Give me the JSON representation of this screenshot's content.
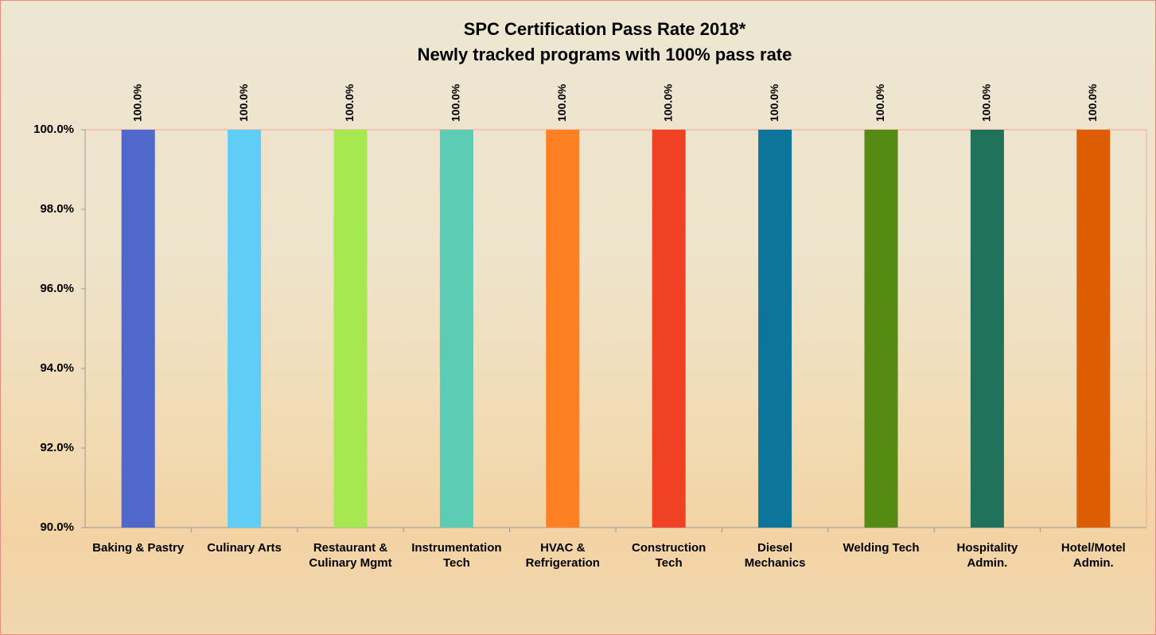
{
  "chart_data": {
    "type": "bar",
    "title": "SPC Certification Pass Rate 2018*",
    "subtitle": "Newly tracked programs with 100% pass rate",
    "categories": [
      "Baking & Pastry",
      "Culinary Arts",
      "Restaurant &\nCulinary Mgmt",
      "Instrumentation\nTech",
      "HVAC &\nRefrigeration",
      "Construction\nTech",
      "Diesel\nMechanics",
      "Welding Tech",
      "Hospitality\nAdmin.",
      "Hotel/Motel\nAdmin."
    ],
    "values": [
      100,
      100,
      100,
      100,
      100,
      100,
      100,
      100,
      100,
      100
    ],
    "value_labels": [
      "100.0%",
      "100.0%",
      "100.0%",
      "100.0%",
      "100.0%",
      "100.0%",
      "100.0%",
      "100.0%",
      "100.0%",
      "100.0%"
    ],
    "colors": [
      "#5067cc",
      "#5fcdf5",
      "#a6e84f",
      "#5ccdb4",
      "#fd8123",
      "#f04124",
      "#0c7599",
      "#568b13",
      "#20735a",
      "#dc5d03"
    ],
    "ylim": [
      90,
      100
    ],
    "yticks": [
      {
        "value": 90,
        "label": "90.0%"
      },
      {
        "value": 92,
        "label": "92.0%"
      },
      {
        "value": 94,
        "label": "94.0%"
      },
      {
        "value": 96,
        "label": "96.0%"
      },
      {
        "value": 98,
        "label": "98.0%"
      },
      {
        "value": 100,
        "label": "100.0%"
      }
    ],
    "grid": false
  }
}
